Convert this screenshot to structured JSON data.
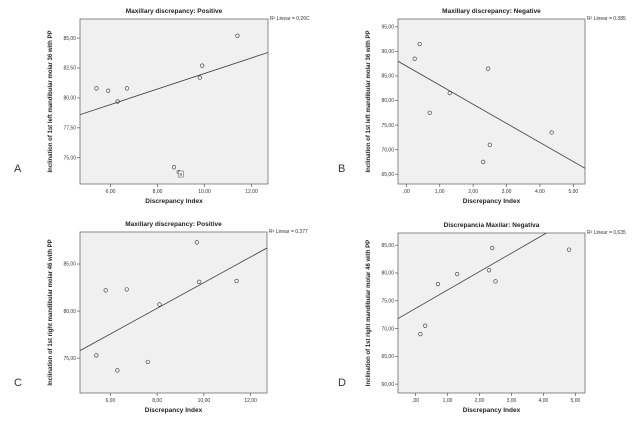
{
  "chart_data": [
    {
      "panel_letter": "A",
      "type": "scatter",
      "title": "Maxillary discrepancy: Positive",
      "xlabel": "Discrepancy Index",
      "ylabel": "Inclination of 1st left mandibular molar 36 with PP",
      "r2_label": "R² Linear = 0.26C",
      "xlim": [
        4.7,
        12.7
      ],
      "ylim": [
        72.8,
        86.6
      ],
      "x_ticks": [
        6,
        8,
        10,
        12
      ],
      "x_tick_labels": [
        "6,00",
        "8,00",
        "10,00",
        "12,00"
      ],
      "y_ticks": [
        75,
        77.5,
        80,
        82.5,
        85
      ],
      "y_tick_labels": [
        "75,00",
        "77,50",
        "80,00",
        "82,50",
        "85,00"
      ],
      "points": [
        [
          5.4,
          80.8
        ],
        [
          5.9,
          80.6
        ],
        [
          6.3,
          79.7
        ],
        [
          6.7,
          80.8
        ],
        [
          8.7,
          74.2
        ],
        [
          8.9,
          73.8
        ],
        [
          9.8,
          81.7
        ],
        [
          9.9,
          82.7
        ],
        [
          11.4,
          85.2
        ]
      ],
      "fit_line": [
        [
          4.7,
          78.6
        ],
        [
          12.7,
          83.8
        ]
      ],
      "point_labels": [
        {
          "x": 8.9,
          "y": 73.8,
          "text": "9"
        }
      ]
    },
    {
      "panel_letter": "B",
      "type": "scatter",
      "title": "Maxillary discrepancy: Negative",
      "xlabel": "Discrepancy Index",
      "ylabel": "Inclination of 1st left mandibular molar 36 with PP",
      "r2_label": "R² Linear = 0.385",
      "xlim": [
        -0.25,
        5.35
      ],
      "ylim": [
        63.0,
        96.6
      ],
      "x_ticks": [
        0,
        1,
        2,
        3,
        4,
        5
      ],
      "x_tick_labels": [
        ",00",
        "1,00",
        "2,00",
        "3,00",
        "4,00",
        "5,00"
      ],
      "y_ticks": [
        65,
        70,
        75,
        80,
        85,
        90,
        95
      ],
      "y_tick_labels": [
        "65,00",
        "70,00",
        "75,00",
        "80,00",
        "85,00",
        "90,00",
        "95,00"
      ],
      "points": [
        [
          0.25,
          88.5
        ],
        [
          0.4,
          91.5
        ],
        [
          0.7,
          77.5
        ],
        [
          1.3,
          81.5
        ],
        [
          2.3,
          67.5
        ],
        [
          2.45,
          86.5
        ],
        [
          2.5,
          71.0
        ],
        [
          4.35,
          73.5
        ]
      ],
      "fit_line": [
        [
          -0.25,
          88.0
        ],
        [
          5.35,
          66.2
        ]
      ]
    },
    {
      "panel_letter": "C",
      "type": "scatter",
      "title": "Maxillary discrepancy: Positive",
      "xlabel": "Discrepancy Index",
      "ylabel": "Inclination of 1st right mandibular molar 46 with PP",
      "r2_label": "R² Linear = 0.377",
      "xlim": [
        4.7,
        12.7
      ],
      "ylim": [
        71.3,
        88.4
      ],
      "x_ticks": [
        6,
        8,
        10,
        12
      ],
      "x_tick_labels": [
        "6,00",
        "8,00",
        "10,00",
        "12,00"
      ],
      "y_ticks": [
        75,
        80,
        85
      ],
      "y_tick_labels": [
        "75,00",
        "80,00",
        "85,00"
      ],
      "points": [
        [
          5.4,
          75.3
        ],
        [
          5.8,
          82.2
        ],
        [
          6.3,
          73.7
        ],
        [
          6.7,
          82.3
        ],
        [
          7.6,
          74.6
        ],
        [
          8.1,
          80.7
        ],
        [
          9.7,
          87.3
        ],
        [
          9.8,
          83.1
        ],
        [
          11.4,
          83.2
        ]
      ],
      "fit_line": [
        [
          4.7,
          75.8
        ],
        [
          12.7,
          86.7
        ]
      ]
    },
    {
      "panel_letter": "D",
      "type": "scatter",
      "title": "Discrepancia Maxilar: Negativa",
      "xlabel": "Discrepancy Index",
      "ylabel": "Inclination of 1st right mandibular molar 46 with PP",
      "r2_label": "R² Linear = 0,635",
      "xlim": [
        -0.55,
        5.3
      ],
      "ylim": [
        58.4,
        87.2
      ],
      "x_ticks": [
        0,
        1,
        2,
        3,
        4,
        5
      ],
      "x_tick_labels": [
        ",00",
        "1,00",
        "2,00",
        "3,00",
        "4,00",
        "5,00"
      ],
      "y_ticks": [
        60,
        65,
        70,
        75,
        80,
        85
      ],
      "y_tick_labels": [
        "60,00",
        "65,00",
        "70,00",
        "75,00",
        "80,00",
        "85,00"
      ],
      "points": [
        [
          0.15,
          69.0
        ],
        [
          0.3,
          70.5
        ],
        [
          0.7,
          78.0
        ],
        [
          1.3,
          79.8
        ],
        [
          2.3,
          80.5
        ],
        [
          2.4,
          84.5
        ],
        [
          2.5,
          78.5
        ],
        [
          4.8,
          84.2
        ]
      ],
      "fit_line": [
        [
          -0.55,
          71.8
        ],
        [
          5.3,
          91.2
        ]
      ]
    }
  ]
}
